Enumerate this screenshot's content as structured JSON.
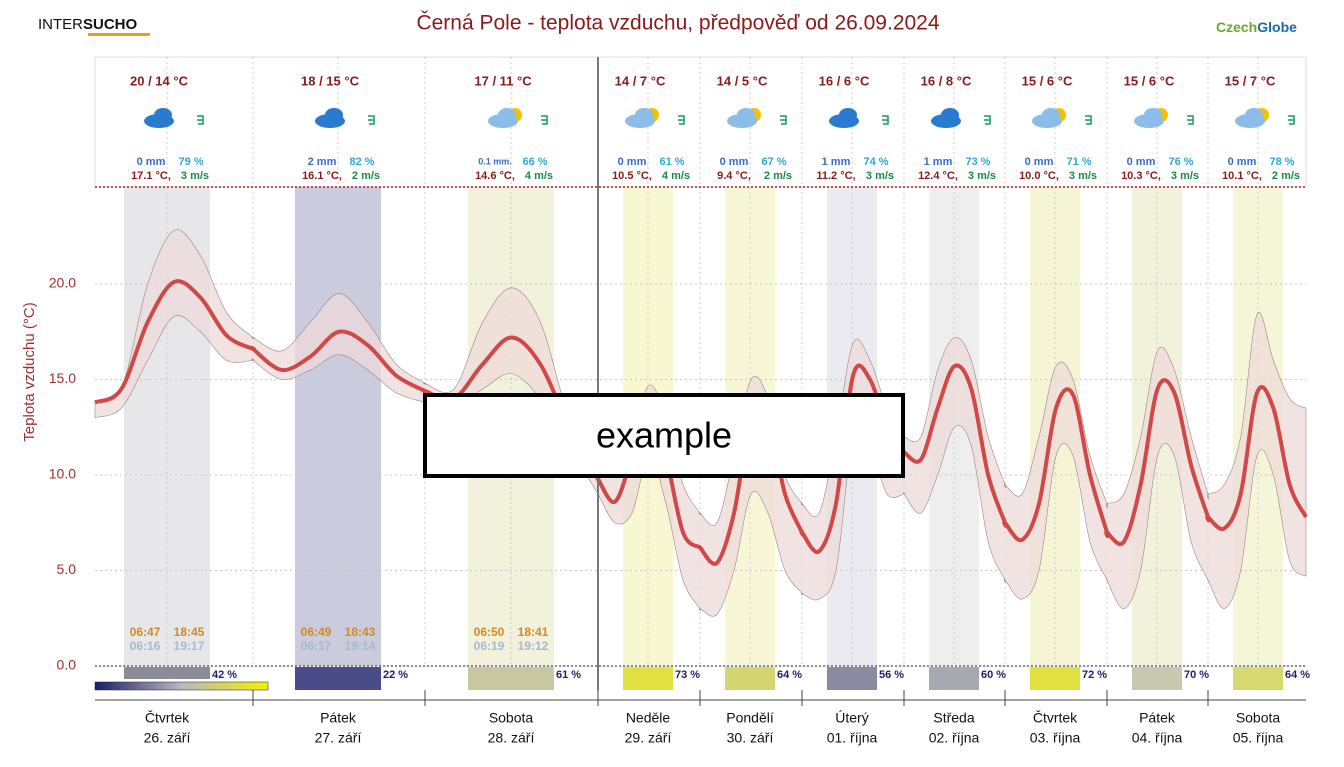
{
  "header": {
    "logo_left_a": "INTER",
    "logo_left_b": "SUCHO",
    "logo_right_a": "Czech",
    "logo_right_b": "Globe"
  },
  "overlay": "example",
  "chart_data": {
    "type": "line",
    "title": "Černá Pole - teplota vzduchu, předpověď od 26.09.2024",
    "y_label": "Teplota vzduchu (°C)",
    "ylim": [
      -1.26,
      25.08
    ],
    "yticks": [
      {
        "value": 0,
        "label": "0.0"
      },
      {
        "value": 5,
        "label": "5.0"
      },
      {
        "value": 10,
        "label": "10.0"
      },
      {
        "value": 15,
        "label": "15.0"
      },
      {
        "value": 20,
        "label": "20.0"
      }
    ],
    "line_color": "#d04848",
    "band_color": "#eedada",
    "days": [
      {
        "weekday": "Čtvrtek",
        "date": "26. září",
        "temp": "20 / 14 °C",
        "precip": "0 mm",
        "humidity": "79 %",
        "mean_temp": "17.1 °C,",
        "wind": "3 m/s",
        "sun": "42 %",
        "sunrise": "06:47",
        "sunset": "18:45",
        "dawn": "06:16",
        "dusk": "19:17",
        "values": [
          13.8,
          14.5,
          18.0,
          20.1,
          19.3,
          17.3,
          16.6
        ],
        "upper": [
          13.8,
          14.5,
          20.0,
          22.8,
          21.5,
          18.5,
          17.2
        ],
        "lower": [
          13.0,
          13.5,
          16.0,
          18.3,
          17.5,
          16.0,
          16.0
        ]
      },
      {
        "weekday": "Pátek",
        "date": "27. září",
        "temp": "18 / 15 °C",
        "precip": "2 mm",
        "humidity": "82 %",
        "mean_temp": "16.1 °C,",
        "wind": "2 m/s",
        "sun": "22 %",
        "sunrise": "06:49",
        "sunset": "18:43",
        "dawn": "06:17",
        "dusk": "19:14",
        "values": [
          16.6,
          15.5,
          16.2,
          17.5,
          16.8,
          15.2,
          14.4
        ],
        "upper": [
          17.2,
          16.5,
          18.0,
          19.5,
          18.0,
          15.8,
          14.8
        ],
        "lower": [
          16.0,
          15.0,
          15.5,
          16.3,
          15.5,
          14.3,
          13.8
        ]
      },
      {
        "weekday": "Sobota",
        "date": "28. září",
        "temp": "17 / 11 °C",
        "precip": "0.1 mm.",
        "humidity": "66 %",
        "mean_temp": "14.6 °C,",
        "wind": "4 m/s",
        "sun": "61 %",
        "sunrise": "06:50",
        "sunset": "18:41",
        "dawn": "06:19",
        "dusk": "19:12",
        "values": [
          14.4,
          14.0,
          15.8,
          17.2,
          15.8,
          12.5,
          9.8
        ],
        "upper": [
          14.8,
          14.5,
          18.0,
          19.8,
          18.0,
          13.0,
          10.5
        ],
        "lower": [
          13.8,
          13.5,
          14.5,
          15.3,
          14.0,
          11.5,
          9.0
        ]
      },
      {
        "weekday": "Neděle",
        "date": "29. září",
        "temp": "14 / 7 °C",
        "precip": "0 mm",
        "humidity": "61 %",
        "mean_temp": "10.5 °C,",
        "wind": "4 m/s",
        "sun": "73 %",
        "values": [
          9.8,
          8.6,
          11.0,
          14.0,
          11.0,
          7.0,
          6.2
        ],
        "upper": [
          10.5,
          10.0,
          12.0,
          14.7,
          13.0,
          9.5,
          8.0
        ],
        "lower": [
          9.0,
          7.5,
          8.0,
          11.0,
          8.5,
          4.5,
          3.0
        ]
      },
      {
        "weekday": "Pondělí",
        "date": "30. září",
        "temp": "14 / 5 °C",
        "precip": "0 mm",
        "humidity": "67 %",
        "mean_temp": "9.4 °C,",
        "wind": "2 m/s",
        "sun": "64 %",
        "values": [
          6.2,
          5.4,
          8.0,
          13.0,
          13.0,
          9.0,
          7.0
        ],
        "upper": [
          8.0,
          7.5,
          11.0,
          15.0,
          14.0,
          10.0,
          8.5
        ],
        "lower": [
          3.0,
          2.7,
          5.0,
          9.0,
          8.0,
          5.0,
          3.8
        ]
      },
      {
        "weekday": "Úterý",
        "date": "01. října",
        "temp": "16 / 6 °C",
        "precip": "1 mm",
        "humidity": "74 %",
        "mean_temp": "11.2 °C,",
        "wind": "3 m/s",
        "sun": "56 %",
        "values": [
          7.0,
          6.0,
          8.5,
          15.2,
          15.0,
          12.5,
          11.2
        ],
        "upper": [
          8.5,
          8.0,
          12.0,
          16.9,
          16.0,
          13.5,
          12.0
        ],
        "lower": [
          3.8,
          3.5,
          5.0,
          12.0,
          11.5,
          9.0,
          9.0
        ]
      },
      {
        "weekday": "Středa",
        "date": "02. října",
        "temp": "16 / 8 °C",
        "precip": "1 mm",
        "humidity": "73 %",
        "mean_temp": "12.4 °C,",
        "wind": "3 m/s",
        "sun": "60 %",
        "values": [
          11.2,
          10.8,
          13.5,
          15.7,
          14.5,
          10.0,
          7.5
        ],
        "upper": [
          12.0,
          12.0,
          15.5,
          17.2,
          16.0,
          12.0,
          9.5
        ],
        "lower": [
          9.0,
          8.0,
          10.0,
          12.5,
          11.5,
          6.5,
          4.5
        ]
      },
      {
        "weekday": "Čtvrtek",
        "date": "03. října",
        "temp": "15 / 6 °C",
        "precip": "0 mm",
        "humidity": "71 %",
        "mean_temp": "10.0 °C,",
        "wind": "3 m/s",
        "sun": "72 %",
        "values": [
          7.5,
          6.6,
          8.5,
          13.5,
          14.2,
          10.0,
          7.0
        ],
        "upper": [
          9.5,
          9.0,
          12.0,
          15.7,
          15.0,
          11.0,
          8.5
        ],
        "lower": [
          4.5,
          3.5,
          5.0,
          11.0,
          11.0,
          6.5,
          4.5
        ]
      },
      {
        "weekday": "Pátek",
        "date": "04. října",
        "temp": "15 / 6 °C",
        "precip": "0 mm",
        "humidity": "76 %",
        "mean_temp": "10.3 °C,",
        "wind": "3 m/s",
        "sun": "70 %",
        "values": [
          7.0,
          6.5,
          9.5,
          14.5,
          14.3,
          10.5,
          7.8
        ],
        "upper": [
          8.5,
          9.0,
          12.0,
          16.5,
          15.5,
          12.0,
          9.0
        ],
        "lower": [
          4.5,
          3.0,
          5.0,
          11.0,
          11.0,
          6.5,
          4.5
        ]
      },
      {
        "weekday": "Sobota",
        "date": "05. října",
        "temp": "15 / 7 °C",
        "precip": "0 mm",
        "humidity": "78 %",
        "mean_temp": "10.1 °C,",
        "wind": "2 m/s",
        "sun": "64 %",
        "values": [
          7.8,
          7.2,
          9.0,
          14.3,
          13.5,
          9.5,
          7.8
        ],
        "upper": [
          9.0,
          9.5,
          12.0,
          18.4,
          16.0,
          14.0,
          13.5
        ],
        "lower": [
          4.5,
          3.0,
          5.0,
          11.0,
          10.0,
          5.5,
          4.7
        ]
      }
    ]
  }
}
